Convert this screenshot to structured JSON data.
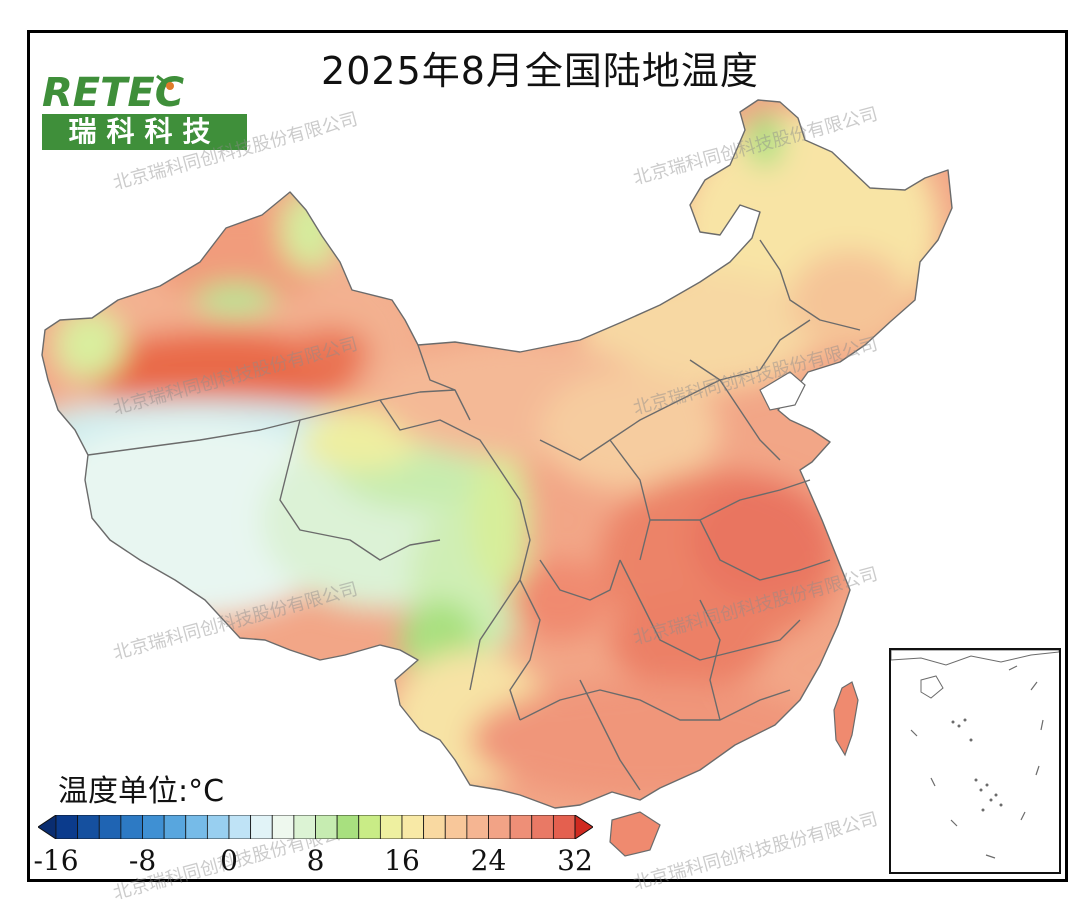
{
  "title": "2025年8月全国陆地温度",
  "logo": {
    "text_en": "RETEC",
    "text_cn": "瑞科科技",
    "brand_color": "#3f8f3a"
  },
  "watermark": "北京瑞科同创科技股份有限公司",
  "legend": {
    "unit_label": "温度单位:°C",
    "min": -16,
    "max": 32,
    "step": 2,
    "tick_labels": [
      "-16",
      "-8",
      "0",
      "8",
      "16",
      "24",
      "32"
    ],
    "tick_values": [
      -16,
      -8,
      0,
      8,
      16,
      24,
      32
    ],
    "colors": [
      "#0b3b8c",
      "#15509f",
      "#1f64b3",
      "#2d7ac4",
      "#3f90d3",
      "#58a6de",
      "#76bbe8",
      "#98cff0",
      "#bfe3f6",
      "#e1f3f7",
      "#eef8ee",
      "#dcf3d4",
      "#c6ecb1",
      "#a8e07f",
      "#c9ec86",
      "#eef0a0",
      "#f8e9a6",
      "#f9d9a1",
      "#f8c79a",
      "#f5b592",
      "#f2a386",
      "#ee8f77",
      "#e97965",
      "#e4604f"
    ],
    "under_color": "#0a2d70",
    "over_color": "#d02a20"
  },
  "map": {
    "region": "China",
    "colors": {
      "tarim_hot": "#e96a4a",
      "xinjiang_warm": "#f0a07e",
      "tibet_cool": "#e6f5ef",
      "qinghai": "#d9f0cc",
      "northeast": "#f7e6a4",
      "central_east": "#f2a183",
      "south": "#f08f73",
      "sichuan_basin": "#f5b58c"
    }
  }
}
